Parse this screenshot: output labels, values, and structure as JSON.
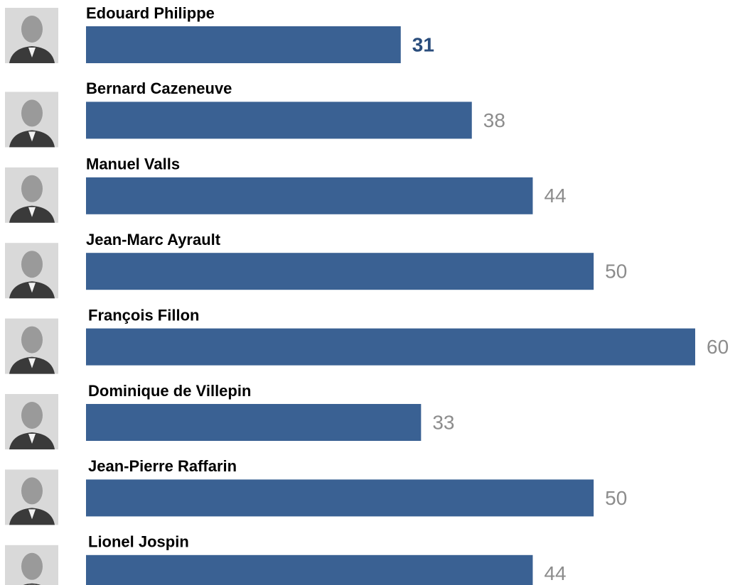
{
  "chart_data": {
    "type": "bar",
    "categories": [
      "Edouard Philippe",
      "Bernard Cazeneuve",
      "Manuel Valls",
      "Jean-Marc Ayrault",
      "François Fillon",
      "Dominique de Villepin",
      "Jean-Pierre Raffarin",
      "Lionel Jospin"
    ],
    "values": [
      31,
      38,
      44,
      50,
      60,
      33,
      50,
      44
    ],
    "color": "#3a6193",
    "value_label_colors": [
      "#2a4d7c",
      "#8c8c8c",
      "#8c8c8c",
      "#8c8c8c",
      "#8c8c8c",
      "#8c8c8c",
      "#8c8c8c",
      "#8c8c8c"
    ]
  }
}
